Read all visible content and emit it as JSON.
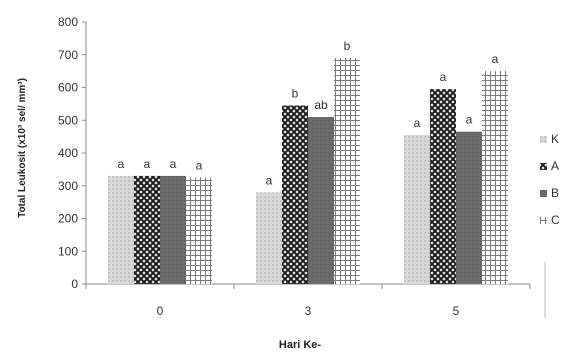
{
  "chart_data": {
    "type": "bar",
    "title": "",
    "xlabel": "Hari Ke-",
    "ylabel": "Total Leukosit (x10³ sel/ mm³)",
    "ylim": [
      0,
      800
    ],
    "yticks": [
      "0",
      "100",
      "200",
      "300",
      "400",
      "500",
      "600",
      "700",
      "800"
    ],
    "categories": [
      "0",
      "3",
      "5"
    ],
    "series": [
      {
        "name": "K",
        "values": [
          330,
          280,
          455
        ],
        "labels": [
          "a",
          "a",
          "a"
        ],
        "color": "#cfcfcf",
        "pattern": "light"
      },
      {
        "name": "A",
        "values": [
          330,
          545,
          595
        ],
        "labels": [
          "a",
          "b",
          "a"
        ],
        "color": "#3a3a3a",
        "pattern": "cross"
      },
      {
        "name": "B",
        "values": [
          330,
          510,
          465
        ],
        "labels": [
          "a",
          "ab",
          "a"
        ],
        "color": "#6e6e6e",
        "pattern": "solid"
      },
      {
        "name": "C",
        "values": [
          325,
          690,
          650
        ],
        "labels": [
          "a",
          "b",
          "a"
        ],
        "color": "#8a8a8a",
        "pattern": "grid"
      }
    ],
    "grid": false,
    "legend": "right"
  }
}
